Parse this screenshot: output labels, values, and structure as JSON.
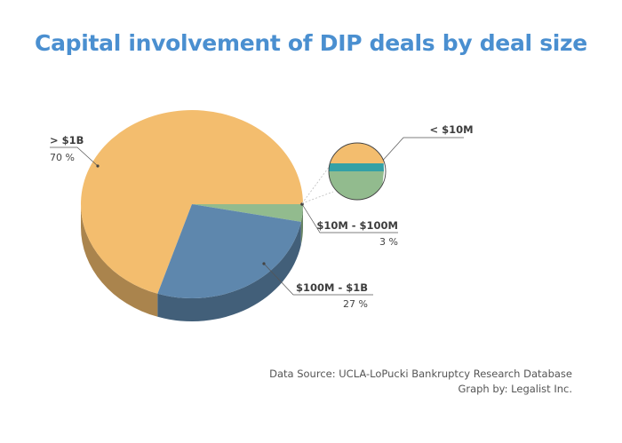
{
  "title": "Capital involvement of DIP deals by deal size",
  "colors": {
    "title": "#4a8fd0",
    "gt_1b": "#f3bd6e",
    "b100m_1b": "#5e87ad",
    "b10m_100m": "#92bb8e",
    "lt_10m": "#34a1a6"
  },
  "chart_data": {
    "type": "pie",
    "title": "Capital involvement of DIP deals by deal size",
    "slices": [
      {
        "label": "> $1B",
        "value": 70,
        "pct_text": "70 %",
        "color": "#f3bd6e"
      },
      {
        "label": "$100M - $1B",
        "value": 27,
        "pct_text": "27 %",
        "color": "#5e87ad"
      },
      {
        "label": "$10M - $100M",
        "value": 3,
        "pct_text": "3 %",
        "color": "#92bb8e"
      }
    ],
    "inset": {
      "label": "< $10M",
      "color": "#34a1a6"
    }
  },
  "footer": {
    "source": "Data Source: UCLA-LoPucki Bankruptcy Research Database",
    "credit": "Graph by: Legalist Inc."
  }
}
